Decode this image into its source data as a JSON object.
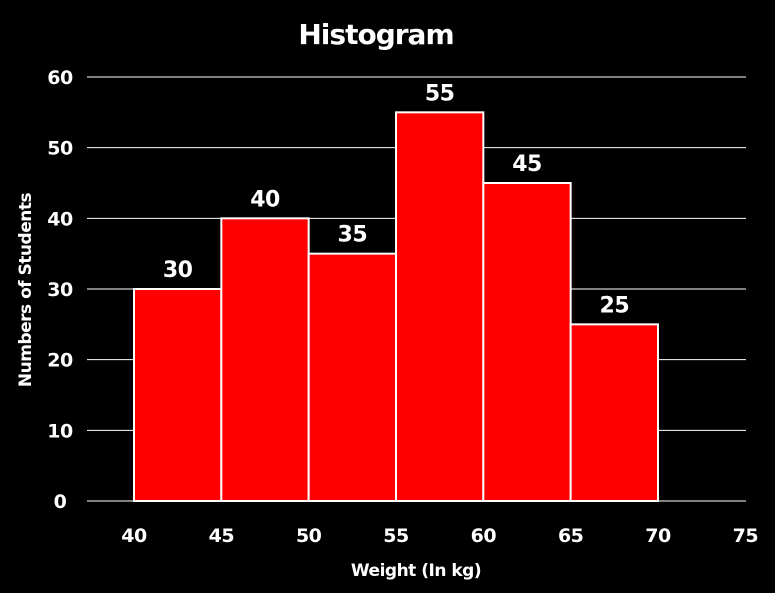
{
  "chart_data": {
    "type": "bar",
    "title": "Histogram",
    "xlabel": "Weight (In kg)",
    "ylabel": "Numbers of Students",
    "bins": [
      [
        40,
        45
      ],
      [
        45,
        50
      ],
      [
        50,
        55
      ],
      [
        55,
        60
      ],
      [
        60,
        65
      ],
      [
        65,
        70
      ]
    ],
    "values": [
      30,
      40,
      35,
      55,
      45,
      25
    ],
    "x_ticks": [
      40,
      45,
      50,
      55,
      60,
      65,
      70,
      75
    ],
    "y_ticks": [
      0,
      10,
      20,
      30,
      40,
      50,
      60
    ],
    "xlim": [
      37.5,
      75
    ],
    "ylim": [
      0,
      60
    ],
    "grid": true,
    "bar_color": "#ff0000",
    "bar_edge_color": "#ffffff",
    "background_color": "#000000",
    "text_color": "#ffffff"
  }
}
